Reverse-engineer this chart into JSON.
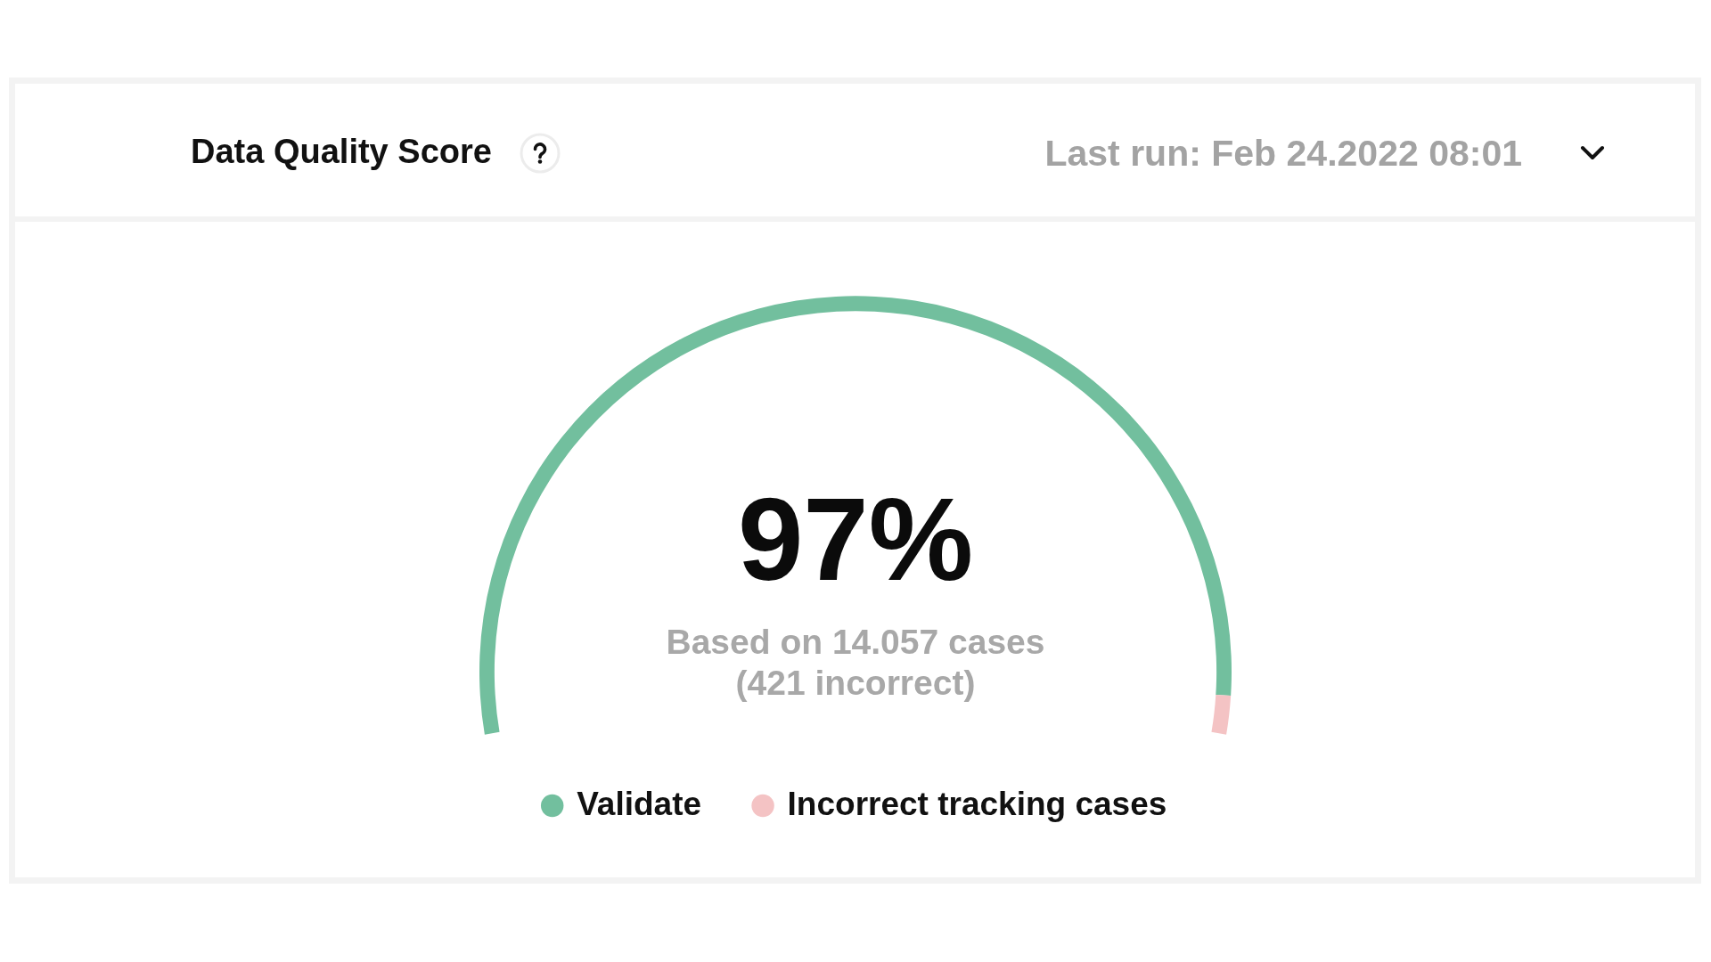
{
  "chart_data": {
    "type": "donut",
    "title": "Data Quality Score",
    "subtitle": "Last run: Feb 24.2022 08:01",
    "categories": [
      "Validate",
      "Incorrect tracking cases"
    ],
    "values": [
      97,
      3
    ],
    "colors": [
      "#72bf9e",
      "#f4c3c4"
    ],
    "legend": "bottom",
    "annotations": [
      "97%",
      "Based on 14.057 cases",
      "(421 incorrect)"
    ]
  }
}
